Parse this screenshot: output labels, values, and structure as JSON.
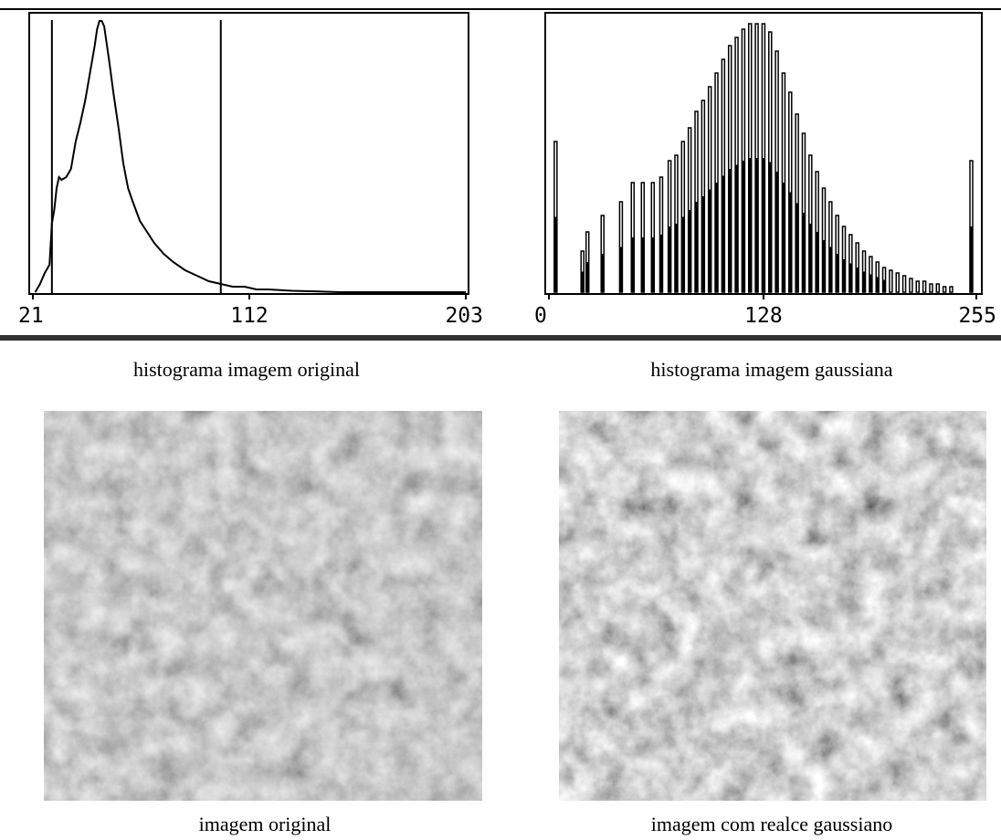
{
  "chart_data": [
    {
      "type": "line",
      "color": "#000000",
      "x": [
        22,
        24,
        26,
        28,
        29,
        30,
        31,
        32,
        33,
        35,
        37,
        39,
        41,
        43,
        45,
        47,
        48,
        49,
        50,
        51,
        53,
        55,
        57,
        59,
        61,
        63,
        66,
        69,
        72,
        76,
        80,
        85,
        90,
        95,
        100,
        105,
        110,
        115,
        120,
        130,
        140,
        150,
        160,
        203
      ],
      "values": [
        0,
        3,
        7,
        10,
        25,
        30,
        38,
        42,
        41,
        42,
        45,
        55,
        62,
        70,
        80,
        90,
        96,
        99,
        99,
        97,
        85,
        72,
        60,
        47,
        38,
        33,
        26,
        22,
        18,
        14,
        11,
        8,
        6,
        4,
        3,
        2,
        2,
        1,
        1,
        0.5,
        0.3,
        0,
        0,
        0
      ],
      "markers": [
        29,
        100
      ],
      "xlim": [
        21,
        203
      ],
      "xticks": [
        21,
        112,
        203
      ],
      "ylim": [
        0,
        100
      ],
      "caption": "histograma imagem original"
    },
    {
      "type": "bar",
      "color": "#000000",
      "x": [
        4,
        20,
        23,
        32,
        43,
        50,
        56,
        62,
        67,
        72,
        76,
        80,
        84,
        88,
        92,
        96,
        100,
        104,
        108,
        112,
        116,
        120,
        124,
        128,
        132,
        136,
        140,
        144,
        148,
        152,
        156,
        160,
        164,
        168,
        172,
        176,
        180,
        184,
        188,
        192,
        196,
        200,
        204,
        208,
        212,
        216,
        220,
        224,
        228,
        232,
        236,
        240,
        252
      ],
      "values": [
        55,
        15,
        22,
        28,
        33,
        40,
        40,
        40,
        42,
        48,
        50,
        55,
        60,
        66,
        70,
        75,
        80,
        85,
        90,
        93,
        96,
        98,
        98,
        98,
        95,
        88,
        80,
        73,
        65,
        58,
        50,
        44,
        38,
        33,
        28,
        24,
        21,
        18,
        15,
        13,
        11,
        9,
        8,
        7,
        6,
        5,
        4,
        4,
        3,
        3,
        2,
        2,
        48
      ],
      "xlim": [
        0,
        255
      ],
      "xticks": [
        0,
        128,
        255
      ],
      "ylim": [
        0,
        100
      ],
      "caption": "histograma imagem gaussiana"
    }
  ],
  "images": [
    {
      "caption": "imagem original"
    },
    {
      "caption": "imagem com realce gaussiano"
    }
  ]
}
